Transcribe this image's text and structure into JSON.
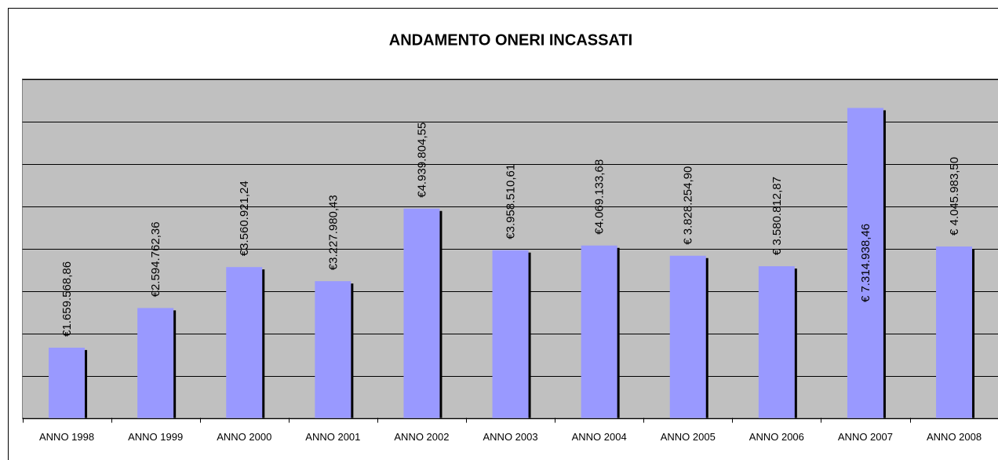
{
  "chart_data": {
    "type": "bar",
    "title": "ANDAMENTO ONERI INCASSATI",
    "categories": [
      "ANNO 1998",
      "ANNO 1999",
      "ANNO 2000",
      "ANNO 2001",
      "ANNO 2002",
      "ANNO 2003",
      "ANNO 2004",
      "ANNO 2005",
      "ANNO 2006",
      "ANNO 2007",
      "ANNO 2008"
    ],
    "values": [
      1659568.86,
      2594762.36,
      3560921.24,
      3227980.43,
      4939804.55,
      3958510.61,
      4069133.68,
      3828254.9,
      3580812.87,
      7314938.46,
      4045983.5
    ],
    "value_labels": [
      "€1.659.568,86",
      "€2.594.762,36",
      "€3.560.921,24",
      "€3.227.980,43",
      "€4.939.804,55",
      "€3.958.510,61",
      "€4.069.133,68",
      "€ 3.828.254,90",
      "€ 3.580.812,87",
      "€ 7.314.938,46",
      "€ 4.045.983,50"
    ],
    "color": "#9999ff",
    "ylim": [
      0,
      8000000
    ],
    "yticks": [
      0,
      1000000,
      2000000,
      3000000,
      4000000,
      5000000,
      6000000,
      7000000,
      8000000
    ],
    "grid": true
  }
}
